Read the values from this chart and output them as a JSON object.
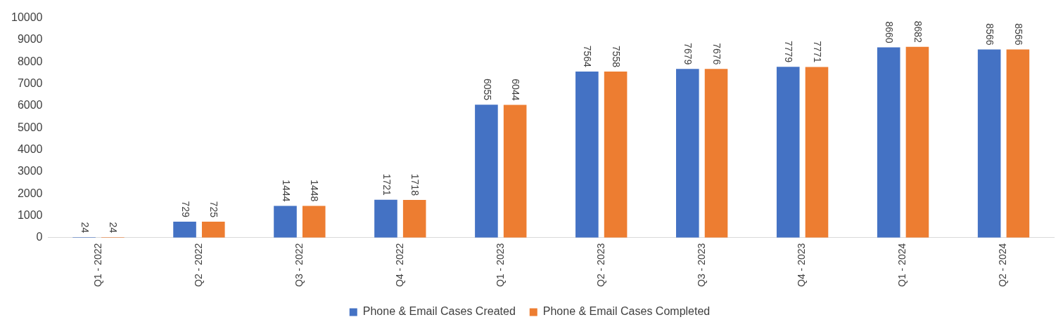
{
  "chart_data": {
    "type": "bar",
    "categories": [
      "Q1 - 2022",
      "Q2 - 2022",
      "Q3 - 2022",
      "Q4 - 2022",
      "Q1 - 2023",
      "Q2 - 2023",
      "Q3 - 2023",
      "Q4 - 2023",
      "Q1 - 2024",
      "Q2 - 2024"
    ],
    "series": [
      {
        "name": "Phone & Email Cases Created",
        "color": "#4472c4",
        "values": [
          24,
          729,
          1444,
          1721,
          6055,
          7564,
          7679,
          7779,
          8660,
          8566
        ]
      },
      {
        "name": "Phone & Email Cases Completed",
        "color": "#ed7d31",
        "values": [
          24,
          725,
          1448,
          1718,
          6044,
          7558,
          7676,
          7771,
          8682,
          8566
        ]
      }
    ],
    "ylim": [
      0,
      10000
    ],
    "yticks": [
      0,
      1000,
      2000,
      3000,
      4000,
      5000,
      6000,
      7000,
      8000,
      9000,
      10000
    ],
    "data_labels": true,
    "legend": "bottom"
  }
}
